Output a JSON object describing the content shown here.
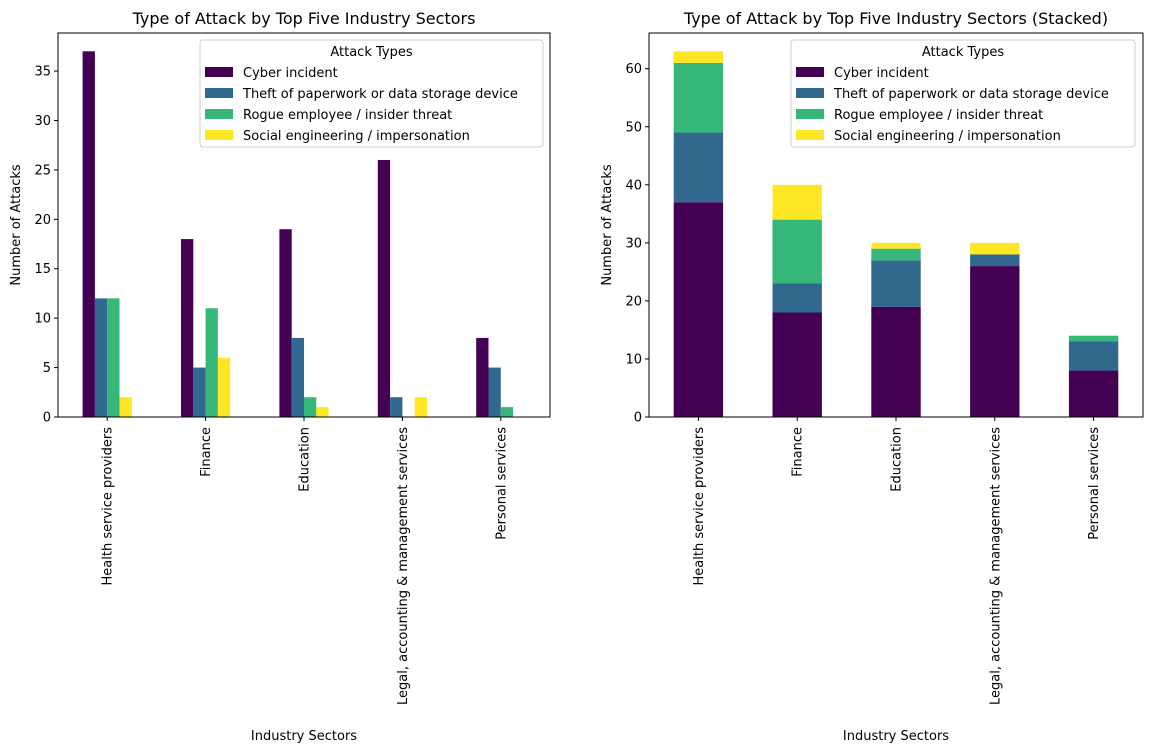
{
  "chart_data": [
    {
      "type": "bar",
      "title": "Type of Attack by Top Five Industry Sectors",
      "xlabel": "Industry Sectors",
      "ylabel": "Number of Attacks",
      "categories": [
        "Health service providers",
        "Finance",
        "Education",
        "Legal, accounting & management services",
        "Personal services"
      ],
      "ylim": [
        0,
        38.85
      ],
      "yticks": [
        0,
        5,
        10,
        15,
        20,
        25,
        30,
        35
      ],
      "stacked": false,
      "grid": false,
      "legend": {
        "title": "Attack Types",
        "placement": "top-right"
      },
      "series": [
        {
          "name": "Cyber incident",
          "color": "#440154",
          "values": [
            37,
            18,
            19,
            26,
            8
          ]
        },
        {
          "name": "Theft of paperwork or data storage device",
          "color": "#31688e",
          "values": [
            12,
            5,
            8,
            2,
            5
          ]
        },
        {
          "name": "Rogue employee / insider threat",
          "color": "#35b779",
          "values": [
            12,
            11,
            2,
            0,
            1
          ]
        },
        {
          "name": "Social engineering / impersonation",
          "color": "#fde725",
          "values": [
            2,
            6,
            1,
            2,
            0
          ]
        }
      ]
    },
    {
      "type": "bar",
      "title": "Type of Attack by Top Five Industry Sectors (Stacked)",
      "xlabel": "Industry Sectors",
      "ylabel": "Number of Attacks",
      "categories": [
        "Health service providers",
        "Finance",
        "Education",
        "Legal, accounting & management services",
        "Personal services"
      ],
      "ylim": [
        0,
        66.15
      ],
      "yticks": [
        0,
        10,
        20,
        30,
        40,
        50,
        60
      ],
      "stacked": true,
      "grid": false,
      "legend": {
        "title": "Attack Types",
        "placement": "top-right"
      },
      "series": [
        {
          "name": "Cyber incident",
          "color": "#440154",
          "values": [
            37,
            18,
            19,
            26,
            8
          ]
        },
        {
          "name": "Theft of paperwork or data storage device",
          "color": "#31688e",
          "values": [
            12,
            5,
            8,
            2,
            5
          ]
        },
        {
          "name": "Rogue employee / insider threat",
          "color": "#35b779",
          "values": [
            12,
            11,
            2,
            0,
            1
          ]
        },
        {
          "name": "Social engineering / impersonation",
          "color": "#fde725",
          "values": [
            2,
            6,
            1,
            2,
            0
          ]
        }
      ]
    }
  ]
}
